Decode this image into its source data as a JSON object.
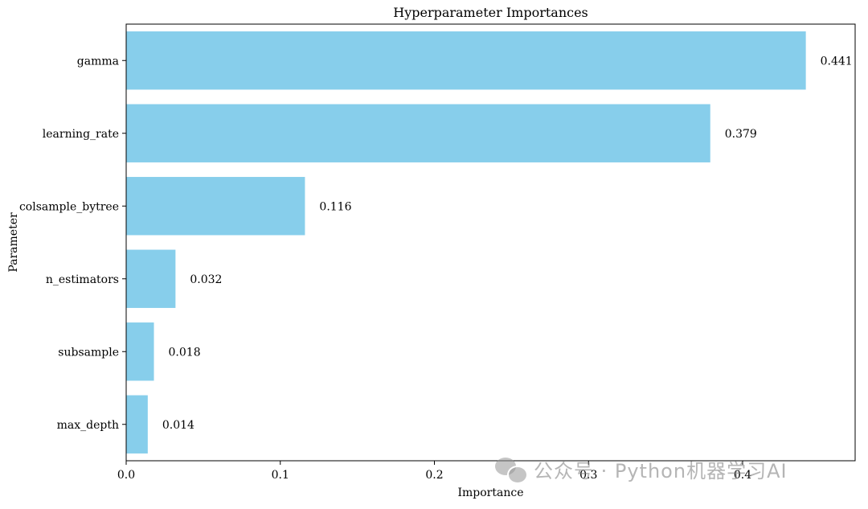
{
  "chart_data": {
    "type": "bar",
    "orientation": "horizontal",
    "title": "Hyperparameter Importances",
    "xlabel": "Importance",
    "ylabel": "Parameter",
    "categories": [
      "gamma",
      "learning_rate",
      "colsample_bytree",
      "n_estimators",
      "subsample",
      "max_depth"
    ],
    "values": [
      0.441,
      0.379,
      0.116,
      0.032,
      0.018,
      0.014
    ],
    "value_labels": [
      "0.441",
      "0.379",
      "0.116",
      "0.032",
      "0.018",
      "0.014"
    ],
    "xlim": [
      0,
      0.473
    ],
    "xticks": [
      0.0,
      0.1,
      0.2,
      0.3,
      0.4
    ],
    "xtick_labels": [
      "0.0",
      "0.1",
      "0.2",
      "0.3",
      "0.4"
    ],
    "bar_color": "#87ceeb",
    "grid": false,
    "legend": "none"
  },
  "watermark": {
    "icon": "wechat-icon",
    "text": "公众号 · Python机器学习AI"
  }
}
